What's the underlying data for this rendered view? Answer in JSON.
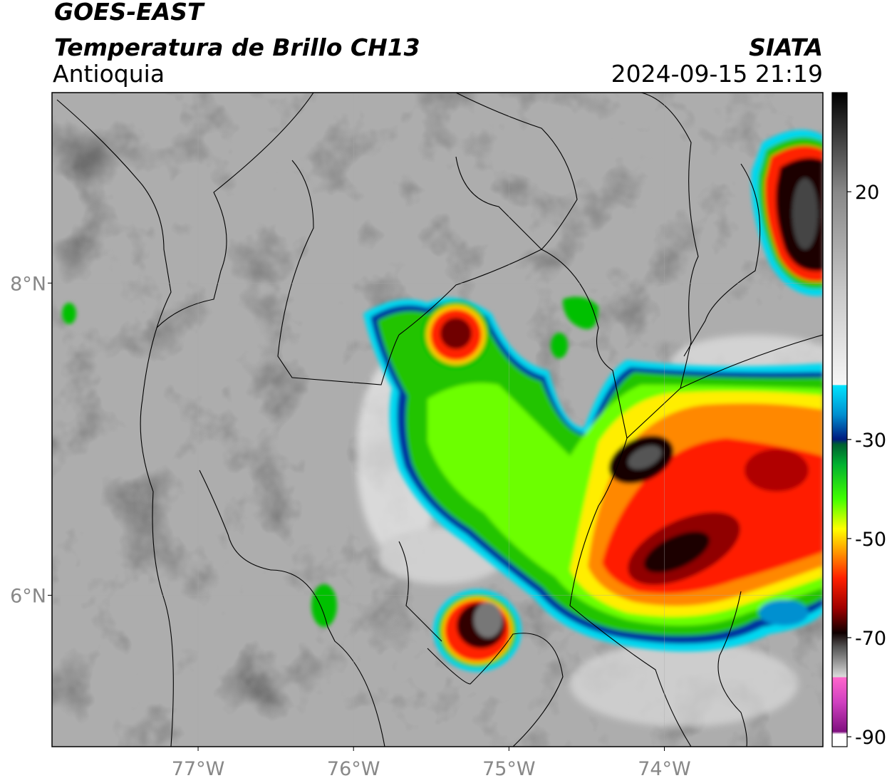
{
  "header": {
    "title": "GOES-EAST",
    "subtitle": "Temperatura de Brillo CH13",
    "region": "Antioquia",
    "source": "SIATA",
    "timestamp": "2024-09-15 21:19"
  },
  "map": {
    "xlim": [
      -77.94,
      -72.98
    ],
    "ylim": [
      5.03,
      9.22
    ],
    "xticks": [
      {
        "value": -77,
        "label": "77°W"
      },
      {
        "value": -76,
        "label": "76°W"
      },
      {
        "value": -75,
        "label": "75°W"
      },
      {
        "value": -74,
        "label": "74°W"
      }
    ],
    "yticks": [
      {
        "value": 8,
        "label": "8°N"
      },
      {
        "value": 6,
        "label": "6°N"
      }
    ]
  },
  "colorbar": {
    "lim": [
      -92,
      40
    ],
    "ticks": [
      20,
      -30,
      -50,
      -70,
      -90
    ]
  }
}
